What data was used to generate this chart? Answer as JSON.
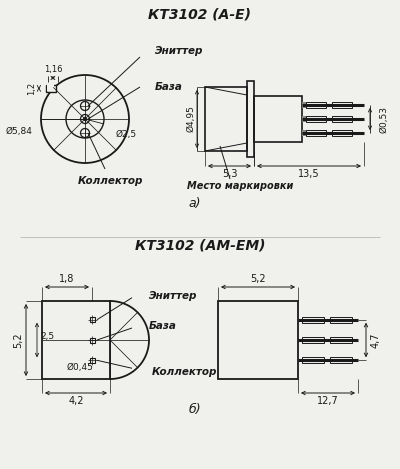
{
  "title_a": "КТ3102 (А-Е)",
  "title_b": "КТ3102 (АМ-ЕМ)",
  "label_a": "а)",
  "label_b": "б)",
  "bg_color": "#f0f0ec",
  "line_color": "#1a1a1a",
  "text_color": "#1a1a1a",
  "emitter_label": "Эниттер",
  "base_label": "База",
  "collector_label": "Коллектор",
  "marking_label": "Место маркировки",
  "emitter_label2": "Эниттер",
  "base_label2": "База",
  "collector_label2": "Коллектор"
}
